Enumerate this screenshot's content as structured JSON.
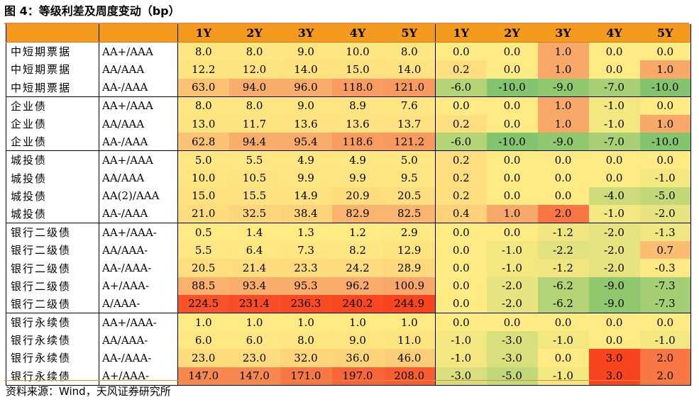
{
  "title": "图 4：等级利差及周度变动（bp）",
  "headers": [
    "",
    "",
    "1Y",
    "2Y",
    "3Y",
    "4Y",
    "5Y",
    "1Y",
    "2Y",
    "3Y",
    "4Y",
    "5Y"
  ],
  "rows": [
    {
      "cat": "中短期票据",
      "rating": "AA+/AAA",
      "spread": [
        "8.0",
        "8.0",
        "9.0",
        "10.0",
        "8.0"
      ],
      "change": [
        "0.0",
        "0.0",
        "1.0",
        "0.0",
        "0.0"
      ]
    },
    {
      "cat": "中短期票据",
      "rating": "AA/AAA",
      "spread": [
        "12.2",
        "12.0",
        "14.0",
        "15.0",
        "14.0"
      ],
      "change": [
        "0.2",
        "0.0",
        "1.0",
        "0.0",
        "1.0"
      ]
    },
    {
      "cat": "中短期票据",
      "rating": "AA-/AAA",
      "spread": [
        "63.0",
        "94.0",
        "96.0",
        "118.0",
        "121.0"
      ],
      "change": [
        "-6.0",
        "-10.0",
        "-9.0",
        "-7.0",
        "-10.0"
      ]
    },
    {
      "cat": "企业债",
      "rating": "AA+/AAA",
      "spread": [
        "8.0",
        "8.0",
        "9.0",
        "8.9",
        "7.6"
      ],
      "change": [
        "0.0",
        "0.0",
        "1.0",
        "-1.0",
        "0.0"
      ]
    },
    {
      "cat": "企业债",
      "rating": "AA/AAA",
      "spread": [
        "13.0",
        "11.7",
        "13.6",
        "13.6",
        "13.7"
      ],
      "change": [
        "0.2",
        "0.0",
        "1.0",
        "-1.0",
        "1.0"
      ]
    },
    {
      "cat": "企业债",
      "rating": "AA-/AAA",
      "spread": [
        "62.8",
        "94.4",
        "95.4",
        "118.6",
        "121.2"
      ],
      "change": [
        "-6.0",
        "-10.0",
        "-9.0",
        "-7.0",
        "-10.0"
      ]
    },
    {
      "cat": "城投债",
      "rating": "AA+/AAA",
      "spread": [
        "5.0",
        "5.5",
        "4.9",
        "4.9",
        "5.0"
      ],
      "change": [
        "0.2",
        "0.0",
        "0.0",
        "0.0",
        "0.0"
      ]
    },
    {
      "cat": "城投债",
      "rating": "AA/AAA",
      "spread": [
        "10.0",
        "10.5",
        "9.9",
        "9.9",
        "9.5"
      ],
      "change": [
        "0.2",
        "0.0",
        "0.0",
        "0.0",
        "-1.0"
      ]
    },
    {
      "cat": "城投债",
      "rating": "AA(2)/AAA",
      "spread": [
        "15.0",
        "15.5",
        "14.9",
        "20.9",
        "20.5"
      ],
      "change": [
        "0.2",
        "0.0",
        "0.0",
        "-4.0",
        "-5.0"
      ]
    },
    {
      "cat": "城投债",
      "rating": "AA-/AAA",
      "spread": [
        "21.0",
        "32.5",
        "38.4",
        "82.9",
        "82.5"
      ],
      "change": [
        "0.4",
        "1.0",
        "2.0",
        "-1.0",
        "-2.0"
      ]
    },
    {
      "cat": "银行二级债",
      "rating": "AA+/AAA-",
      "spread": [
        "0.5",
        "1.4",
        "1.3",
        "1.2",
        "2.9"
      ],
      "change": [
        "0.0",
        "0.0",
        "-1.2",
        "-2.0",
        "-1.3"
      ]
    },
    {
      "cat": "银行二级债",
      "rating": "AA/AAA-",
      "spread": [
        "5.5",
        "6.4",
        "7.3",
        "8.2",
        "12.9"
      ],
      "change": [
        "0.0",
        "-1.0",
        "-2.2",
        "-2.0",
        "0.7"
      ]
    },
    {
      "cat": "银行二级债",
      "rating": "AA-/AAA-",
      "spread": [
        "20.5",
        "21.4",
        "23.3",
        "24.2",
        "28.9"
      ],
      "change": [
        "0.0",
        "-1.0",
        "-1.2",
        "-2.0",
        "-0.3"
      ]
    },
    {
      "cat": "银行二级债",
      "rating": "A+/AAA-",
      "spread": [
        "88.5",
        "93.4",
        "95.3",
        "96.2",
        "100.9"
      ],
      "change": [
        "0.0",
        "-2.0",
        "-6.2",
        "-9.0",
        "-7.3"
      ]
    },
    {
      "cat": "银行二级债",
      "rating": "A/AAA-",
      "spread": [
        "224.5",
        "231.4",
        "236.3",
        "240.2",
        "244.9"
      ],
      "change": [
        "0.0",
        "-2.0",
        "-6.2",
        "-9.0",
        "-7.3"
      ]
    },
    {
      "cat": "银行永续债",
      "rating": "AA+/AAA-",
      "spread": [
        "1.0",
        "1.0",
        "1.0",
        "1.0",
        "1.0"
      ],
      "change": [
        "0.0",
        "0.0",
        "0.0",
        "0.0",
        "0.0"
      ]
    },
    {
      "cat": "银行永续债",
      "rating": "AA/AAA-",
      "spread": [
        "6.0",
        "6.0",
        "8.0",
        "9.0",
        "11.0"
      ],
      "change": [
        "-1.0",
        "-3.0",
        "-1.0",
        "0.0",
        "-1.0"
      ]
    },
    {
      "cat": "银行永续债",
      "rating": "AA-/AAA-",
      "spread": [
        "23.0",
        "23.0",
        "32.0",
        "36.0",
        "46.0"
      ],
      "change": [
        "-1.0",
        "-3.0",
        "0.0",
        "3.0",
        "2.0"
      ]
    },
    {
      "cat": "银行永续债",
      "rating": "A+/AAA-",
      "spread": [
        "147.0",
        "147.0",
        "171.0",
        "197.0",
        "208.0"
      ],
      "change": [
        "-3.0",
        "-5.0",
        "-1.0",
        "3.0",
        "2.0"
      ]
    }
  ],
  "group_starts": [
    0,
    3,
    6,
    10,
    15
  ],
  "colors": {
    "header": "#F39A1F",
    "cell_low": "#FFEB84",
    "cell_mid": "#F8A96A",
    "cell_high": "#F8441F",
    "cell_neg_low": "#FFEB84",
    "cell_neg_high": "#84C46E",
    "rule": "#E98B3A"
  },
  "source": "资料来源：Wind，天风证券研究所"
}
